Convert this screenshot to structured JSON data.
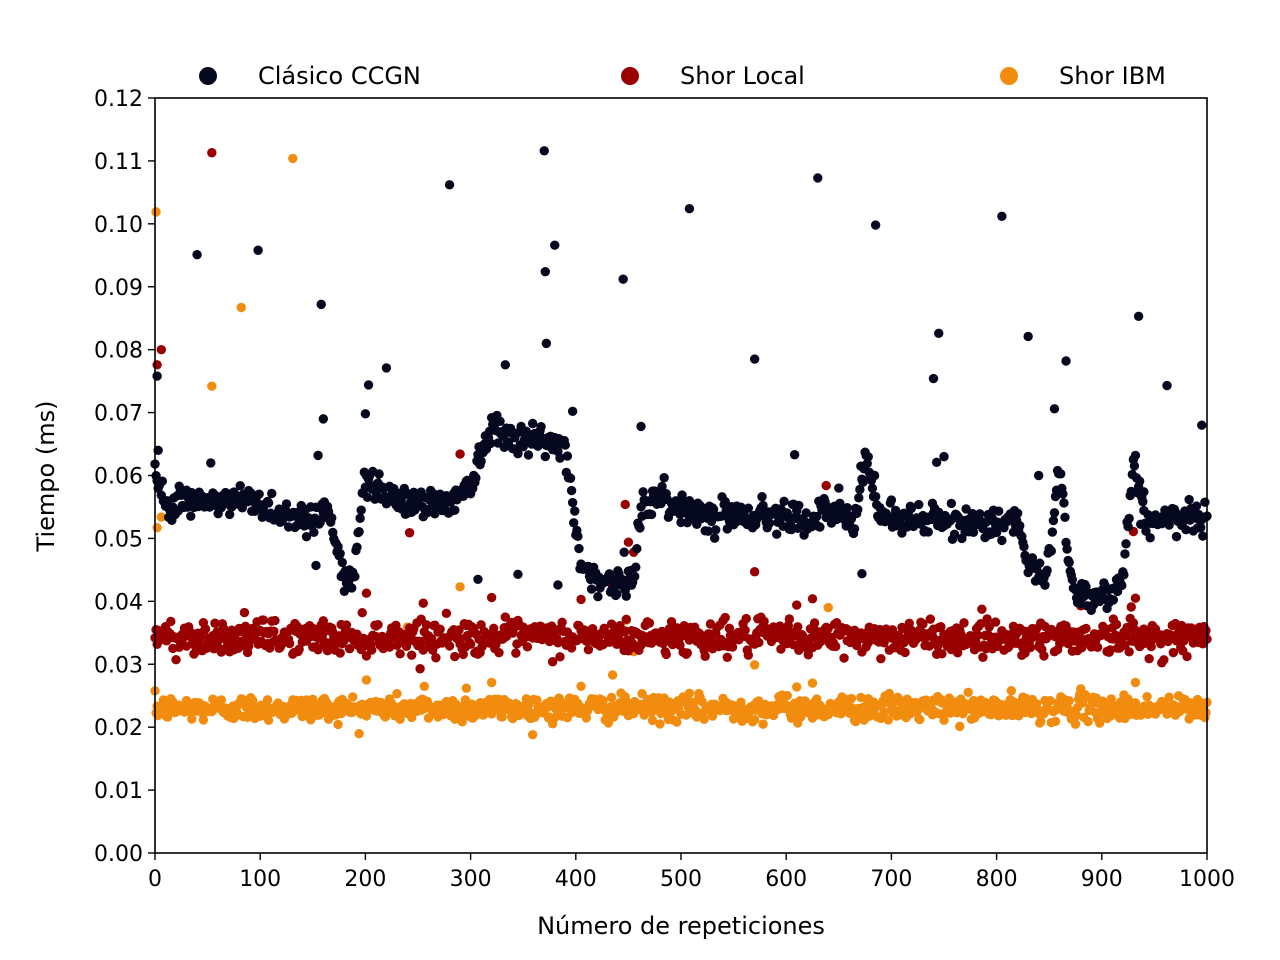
{
  "chart_data": {
    "type": "scatter",
    "title": "",
    "xlabel": "Número de repeticiones",
    "ylabel": "Tiempo (ms)",
    "xlim": [
      0,
      1000
    ],
    "ylim": [
      0,
      0.12
    ],
    "x_ticks": [
      0,
      100,
      200,
      300,
      400,
      500,
      600,
      700,
      800,
      900,
      1000
    ],
    "x_tick_labels": [
      "0",
      "100",
      "200",
      "300",
      "400",
      "500",
      "600",
      "700",
      "800",
      "900",
      "1000"
    ],
    "y_ticks": [
      0,
      0.01,
      0.02,
      0.03,
      0.04,
      0.05,
      0.06,
      0.07,
      0.08,
      0.09,
      0.1,
      0.11,
      0.12
    ],
    "y_tick_labels": [
      "0.00",
      "0.01",
      "0.02",
      "0.03",
      "0.04",
      "0.05",
      "0.06",
      "0.07",
      "0.08",
      "0.09",
      "0.10",
      "0.11",
      "0.12"
    ],
    "grid": false,
    "legend_position": "top",
    "series": [
      {
        "name": "Clásico CCGN",
        "color": "#05081e",
        "profile": [
          [
            0,
            0.0602
          ],
          [
            12,
            0.0555
          ],
          [
            30,
            0.056
          ],
          [
            60,
            0.0555
          ],
          [
            90,
            0.0562
          ],
          [
            120,
            0.054
          ],
          [
            150,
            0.053
          ],
          [
            165,
            0.055
          ],
          [
            180,
            0.043
          ],
          [
            188,
            0.043
          ],
          [
            200,
            0.06
          ],
          [
            230,
            0.056
          ],
          [
            280,
            0.0555
          ],
          [
            300,
            0.059
          ],
          [
            320,
            0.068
          ],
          [
            350,
            0.066
          ],
          [
            390,
            0.0645
          ],
          [
            405,
            0.046
          ],
          [
            420,
            0.0435
          ],
          [
            440,
            0.0425
          ],
          [
            455,
            0.043
          ],
          [
            462,
            0.056
          ],
          [
            480,
            0.056
          ],
          [
            520,
            0.054
          ],
          [
            580,
            0.0535
          ],
          [
            610,
            0.0545
          ],
          [
            620,
            0.052
          ],
          [
            640,
            0.0545
          ],
          [
            665,
            0.052
          ],
          [
            675,
            0.063
          ],
          [
            690,
            0.0535
          ],
          [
            760,
            0.0525
          ],
          [
            820,
            0.0525
          ],
          [
            830,
            0.045
          ],
          [
            848,
            0.044
          ],
          [
            860,
            0.062
          ],
          [
            870,
            0.044
          ],
          [
            880,
            0.041
          ],
          [
            910,
            0.041
          ],
          [
            920,
            0.044
          ],
          [
            930,
            0.062
          ],
          [
            940,
            0.053
          ],
          [
            1000,
            0.053
          ]
        ],
        "noise": 0.0012,
        "outliers": [
          [
            2,
            0.0758
          ],
          [
            3,
            0.064
          ],
          [
            40,
            0.0951
          ],
          [
            53,
            0.062
          ],
          [
            98,
            0.0958
          ],
          [
            158,
            0.0872
          ],
          [
            160,
            0.069
          ],
          [
            155,
            0.0632
          ],
          [
            153,
            0.0457
          ],
          [
            200,
            0.0698
          ],
          [
            203,
            0.0744
          ],
          [
            220,
            0.0771
          ],
          [
            280,
            0.1062
          ],
          [
            307,
            0.0435
          ],
          [
            333,
            0.0776
          ],
          [
            345,
            0.0443
          ],
          [
            370,
            0.1116
          ],
          [
            371,
            0.0924
          ],
          [
            372,
            0.081
          ],
          [
            380,
            0.0966
          ],
          [
            383,
            0.0426
          ],
          [
            397,
            0.0702
          ],
          [
            445,
            0.0912
          ],
          [
            446,
            0.0478
          ],
          [
            462,
            0.0678
          ],
          [
            508,
            0.1024
          ],
          [
            570,
            0.0785
          ],
          [
            608,
            0.0633
          ],
          [
            630,
            0.1073
          ],
          [
            650,
            0.058
          ],
          [
            672,
            0.0444
          ],
          [
            685,
            0.0998
          ],
          [
            740,
            0.0754
          ],
          [
            743,
            0.0621
          ],
          [
            745,
            0.0826
          ],
          [
            750,
            0.063
          ],
          [
            805,
            0.1012
          ],
          [
            830,
            0.0821
          ],
          [
            840,
            0.06
          ],
          [
            855,
            0.0706
          ],
          [
            866,
            0.0782
          ],
          [
            935,
            0.0853
          ],
          [
            962,
            0.0743
          ],
          [
            995,
            0.068
          ],
          [
            940,
            0.0574
          ]
        ]
      },
      {
        "name": "Shor Local",
        "color": "#990000",
        "profile": [
          [
            0,
            0.0343
          ],
          [
            1000,
            0.0343
          ]
        ],
        "noise": 0.0013,
        "outliers": [
          [
            2,
            0.0776
          ],
          [
            6,
            0.08
          ],
          [
            54,
            0.1113
          ],
          [
            201,
            0.0413
          ],
          [
            240,
            0.054
          ],
          [
            242,
            0.0509
          ],
          [
            255,
            0.0397
          ],
          [
            290,
            0.0634
          ],
          [
            320,
            0.0406
          ],
          [
            405,
            0.0403
          ],
          [
            435,
            0.0423
          ],
          [
            447,
            0.0554
          ],
          [
            450,
            0.0494
          ],
          [
            455,
            0.0478
          ],
          [
            570,
            0.0447
          ],
          [
            610,
            0.0394
          ],
          [
            625,
            0.0404
          ],
          [
            638,
            0.0584
          ],
          [
            880,
            0.0393
          ],
          [
            930,
            0.0511
          ],
          [
            932,
            0.0405
          ],
          [
            928,
            0.0391
          ]
        ]
      },
      {
        "name": "Shor IBM",
        "color": "#f28c0f",
        "profile": [
          [
            0,
            0.023
          ],
          [
            1000,
            0.023
          ]
        ],
        "noise": 0.001,
        "outliers": [
          [
            1,
            0.1019
          ],
          [
            2,
            0.0517
          ],
          [
            6,
            0.0534
          ],
          [
            54,
            0.0742
          ],
          [
            82,
            0.0867
          ],
          [
            131,
            0.1104
          ],
          [
            201,
            0.0275
          ],
          [
            240,
            0.0359
          ],
          [
            242,
            0.0342
          ],
          [
            256,
            0.0265
          ],
          [
            290,
            0.0423
          ],
          [
            296,
            0.0262
          ],
          [
            320,
            0.0271
          ],
          [
            405,
            0.0265
          ],
          [
            435,
            0.0283
          ],
          [
            448,
            0.037
          ],
          [
            450,
            0.033
          ],
          [
            455,
            0.032
          ],
          [
            570,
            0.0299
          ],
          [
            610,
            0.0264
          ],
          [
            625,
            0.027
          ],
          [
            640,
            0.039
          ],
          [
            880,
            0.0261
          ],
          [
            930,
            0.0341
          ],
          [
            932,
            0.0271
          ]
        ]
      }
    ]
  }
}
